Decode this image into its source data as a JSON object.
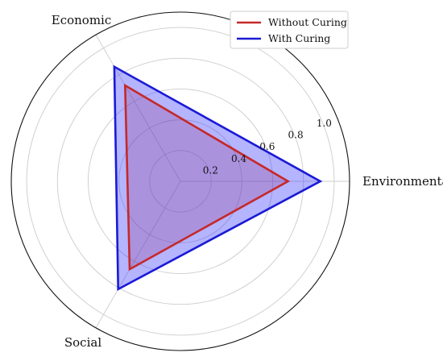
{
  "chart_data": {
    "type": "radar",
    "axes": [
      "Environmental",
      "Economic",
      "Social"
    ],
    "series": [
      {
        "name": "Without Curing",
        "values": [
          0.7,
          0.72,
          0.66
        ],
        "stroke": "#c62828",
        "fill": "#c62828",
        "fill_opacity": 0.25
      },
      {
        "name": "With Curing",
        "values": [
          0.91,
          0.86,
          0.81
        ],
        "stroke": "#1a1ad6",
        "fill": "#3a3aff",
        "fill_opacity": 0.38
      }
    ],
    "rlim": [
      0,
      1.1
    ],
    "r_ticks": [
      0.2,
      0.4,
      0.6,
      0.8,
      1.0
    ],
    "r_tick_labels": [
      "0.2",
      "0.4",
      "0.6",
      "0.8",
      "1.0"
    ],
    "grid": true,
    "legend_position": "top-right"
  }
}
